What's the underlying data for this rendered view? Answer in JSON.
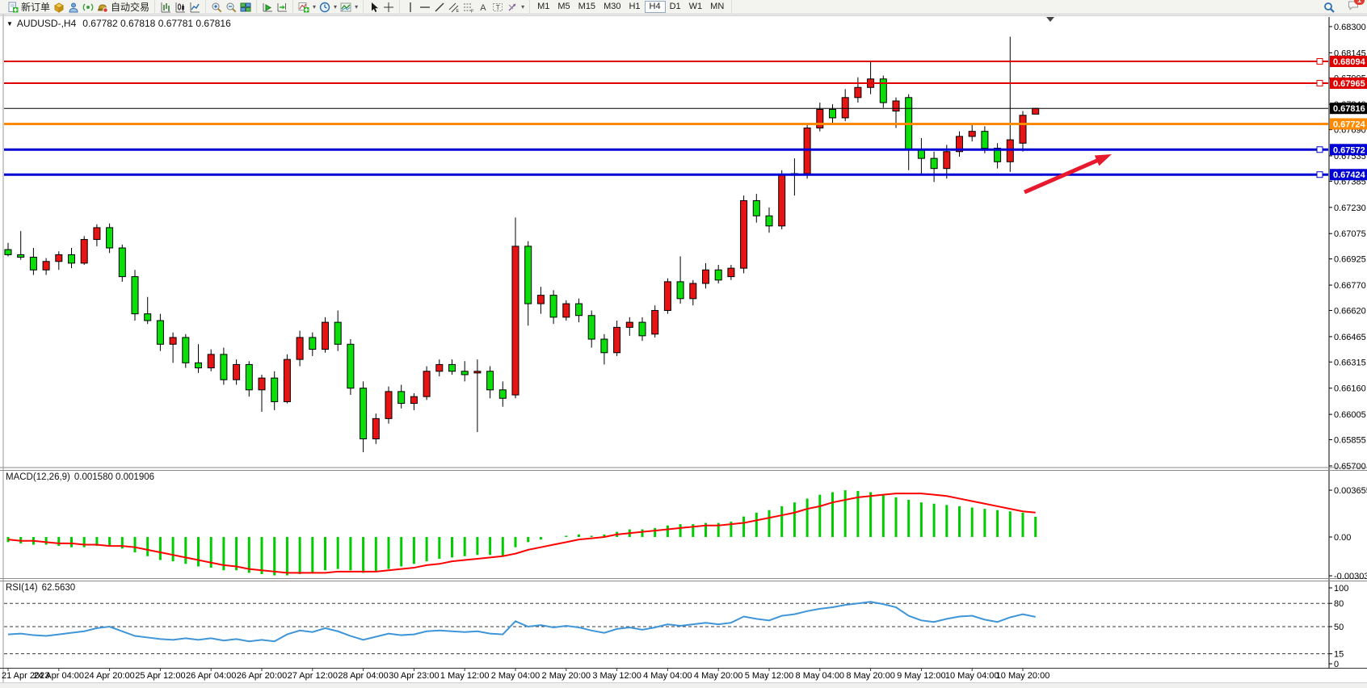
{
  "toolbar": {
    "groups": [
      {
        "items": [
          {
            "icon": "new-order",
            "label": "新订单"
          },
          {
            "icon": "deposit"
          },
          {
            "icon": "community"
          },
          {
            "icon": "signals"
          },
          {
            "icon": "autotrade",
            "label": "自动交易"
          }
        ]
      },
      {
        "items": [
          {
            "icon": "bar-chart"
          },
          {
            "icon": "candle-chart"
          },
          {
            "icon": "line-chart"
          }
        ]
      },
      {
        "items": [
          {
            "icon": "zoom-in"
          },
          {
            "icon": "zoom-out"
          },
          {
            "icon": "tile-windows"
          }
        ]
      },
      {
        "items": [
          {
            "icon": "auto-scroll"
          },
          {
            "icon": "chart-shift"
          }
        ]
      },
      {
        "items": [
          {
            "icon": "indicators",
            "dropdown": true
          },
          {
            "icon": "periods",
            "dropdown": true
          },
          {
            "icon": "templates",
            "dropdown": true
          }
        ]
      },
      {
        "items": [
          {
            "icon": "cursor"
          },
          {
            "icon": "crosshair"
          }
        ]
      },
      {
        "items": [
          {
            "icon": "vline"
          },
          {
            "icon": "hline"
          },
          {
            "icon": "trendline"
          },
          {
            "icon": "channel"
          },
          {
            "icon": "fibonacci"
          },
          {
            "icon": "text"
          },
          {
            "icon": "label"
          },
          {
            "icon": "shapes",
            "dropdown": true
          }
        ]
      }
    ],
    "timeframes": [
      "M1",
      "M5",
      "M15",
      "M30",
      "H1",
      "H4",
      "D1",
      "W1",
      "MN"
    ],
    "active_timeframe": "H4",
    "chat_badge": "1"
  },
  "chart": {
    "symbol_period": "AUDUSD-,H4",
    "ohlc_display": "0.67782 0.67818 0.67781 0.67816"
  },
  "chart_data": {
    "type": "candlestick",
    "symbol": "AUDUSD-",
    "timeframe": "H4",
    "current_bar": {
      "open": 0.67782,
      "high": 0.67818,
      "low": 0.67781,
      "close": 0.67816
    },
    "bull_color": "#E81414",
    "bear_color": "#0ADF0A",
    "y_range": [
      0.65695,
      0.68357
    ],
    "price_axis_ticks": [
      "0.68300",
      "0.68145",
      "0.67995",
      "0.67840",
      "0.67690",
      "0.67535",
      "0.67385",
      "0.67230",
      "0.67075",
      "0.66925",
      "0.66770",
      "0.66620",
      "0.66465",
      "0.66315",
      "0.66160",
      "0.66005",
      "0.65855",
      "0.65700"
    ],
    "x_labels": [
      "21 Apr 2023",
      "24 Apr 04:00",
      "24 Apr 20:00",
      "25 Apr 12:00",
      "26 Apr 04:00",
      "26 Apr 20:00",
      "27 Apr 12:00",
      "28 Apr 04:00",
      "30 Apr 23:00",
      "1 May 12:00",
      "2 May 04:00",
      "2 May 20:00",
      "3 May 12:00",
      "4 May 04:00",
      "4 May 20:00",
      "5 May 12:00",
      "8 May 04:00",
      "8 May 20:00",
      "9 May 12:00",
      "10 May 04:00",
      "10 May 20:00"
    ],
    "x_label_every_n_bars": 4,
    "candles": [
      [
        0.6698,
        0.6702,
        0.6694,
        0.6695
      ],
      [
        0.6695,
        0.6709,
        0.6692,
        0.66935
      ],
      [
        0.66935,
        0.6699,
        0.6683,
        0.6686
      ],
      [
        0.6686,
        0.6693,
        0.6683,
        0.6691
      ],
      [
        0.6691,
        0.6697,
        0.6686,
        0.6695
      ],
      [
        0.6695,
        0.6699,
        0.6687,
        0.669
      ],
      [
        0.669,
        0.6706,
        0.6689,
        0.6704
      ],
      [
        0.6704,
        0.6713,
        0.67,
        0.6711
      ],
      [
        0.6711,
        0.67135,
        0.6696,
        0.6699
      ],
      [
        0.6699,
        0.6701,
        0.6679,
        0.6682
      ],
      [
        0.6682,
        0.6686,
        0.6656,
        0.666
      ],
      [
        0.666,
        0.667,
        0.6654,
        0.6656
      ],
      [
        0.6656,
        0.666,
        0.6638,
        0.6642
      ],
      [
        0.6642,
        0.6649,
        0.6631,
        0.6646
      ],
      [
        0.6646,
        0.6648,
        0.6628,
        0.6631
      ],
      [
        0.6631,
        0.6642,
        0.6625,
        0.6628
      ],
      [
        0.6628,
        0.6639,
        0.6626,
        0.6636
      ],
      [
        0.6636,
        0.664,
        0.6618,
        0.6621
      ],
      [
        0.6621,
        0.6633,
        0.6618,
        0.663
      ],
      [
        0.663,
        0.6632,
        0.6611,
        0.6615
      ],
      [
        0.6615,
        0.6624,
        0.6602,
        0.6622
      ],
      [
        0.6622,
        0.6626,
        0.6603,
        0.6608
      ],
      [
        0.6608,
        0.6636,
        0.6607,
        0.6633
      ],
      [
        0.6633,
        0.665,
        0.6629,
        0.6646
      ],
      [
        0.6646,
        0.6649,
        0.6635,
        0.6639
      ],
      [
        0.6639,
        0.6658,
        0.6637,
        0.6655
      ],
      [
        0.6655,
        0.6662,
        0.6638,
        0.6642
      ],
      [
        0.6642,
        0.6645,
        0.6612,
        0.6616
      ],
      [
        0.6616,
        0.662,
        0.65781,
        0.6586
      ],
      [
        0.6586,
        0.6601,
        0.6583,
        0.6598
      ],
      [
        0.6598,
        0.6617,
        0.6595,
        0.6614
      ],
      [
        0.6614,
        0.6618,
        0.6604,
        0.6607
      ],
      [
        0.6607,
        0.6613,
        0.6603,
        0.6611
      ],
      [
        0.6611,
        0.6629,
        0.6609,
        0.6626
      ],
      [
        0.6626,
        0.6633,
        0.6623,
        0.663
      ],
      [
        0.663,
        0.6633,
        0.6624,
        0.6626
      ],
      [
        0.6626,
        0.6632,
        0.662,
        0.6624
      ],
      [
        0.6625,
        0.6633,
        0.659,
        0.6626
      ],
      [
        0.6626,
        0.6629,
        0.661,
        0.6615
      ],
      [
        0.6615,
        0.662,
        0.6605,
        0.661
      ],
      [
        0.6612,
        0.6717,
        0.661,
        0.67
      ],
      [
        0.67,
        0.6703,
        0.6653,
        0.6666
      ],
      [
        0.6666,
        0.6676,
        0.666,
        0.6671
      ],
      [
        0.6671,
        0.6674,
        0.6654,
        0.6658
      ],
      [
        0.6658,
        0.6668,
        0.6656,
        0.6666
      ],
      [
        0.6666,
        0.6669,
        0.6655,
        0.6659
      ],
      [
        0.6659,
        0.6662,
        0.664,
        0.6645
      ],
      [
        0.6645,
        0.6648,
        0.663,
        0.6637
      ],
      [
        0.6637,
        0.6656,
        0.6635,
        0.6652
      ],
      [
        0.6652,
        0.6658,
        0.6647,
        0.6655
      ],
      [
        0.6655,
        0.6658,
        0.6644,
        0.6647
      ],
      [
        0.6648,
        0.6665,
        0.6646,
        0.6662
      ],
      [
        0.6662,
        0.6681,
        0.666,
        0.6679
      ],
      [
        0.6679,
        0.6694,
        0.6666,
        0.6669
      ],
      [
        0.6669,
        0.668,
        0.6665,
        0.6678
      ],
      [
        0.6678,
        0.669,
        0.6675,
        0.6686
      ],
      [
        0.6686,
        0.6689,
        0.6678,
        0.668
      ],
      [
        0.6682,
        0.6689,
        0.668,
        0.6687
      ],
      [
        0.6687,
        0.673,
        0.6684,
        0.6727
      ],
      [
        0.6727,
        0.6731,
        0.6714,
        0.6718
      ],
      [
        0.6718,
        0.6723,
        0.6708,
        0.6712
      ],
      [
        0.6712,
        0.6745,
        0.671,
        0.6742
      ],
      [
        0.6742,
        0.6752,
        0.673,
        0.6743
      ],
      [
        0.6743,
        0.6773,
        0.674,
        0.677
      ],
      [
        0.677,
        0.6785,
        0.6768,
        0.6781
      ],
      [
        0.6781,
        0.6784,
        0.6772,
        0.6776
      ],
      [
        0.6776,
        0.6793,
        0.6774,
        0.6788
      ],
      [
        0.6788,
        0.68,
        0.6785,
        0.6794
      ],
      [
        0.6794,
        0.68099,
        0.679,
        0.6799
      ],
      [
        0.6799,
        0.6801,
        0.6782,
        0.6785
      ],
      [
        0.678,
        0.6788,
        0.677,
        0.6786
      ],
      [
        0.6788,
        0.679,
        0.6745,
        0.6757
      ],
      [
        0.6757,
        0.6764,
        0.6742,
        0.6752
      ],
      [
        0.6752,
        0.6756,
        0.6738,
        0.6746
      ],
      [
        0.6746,
        0.676,
        0.674,
        0.6756
      ],
      [
        0.6756,
        0.6768,
        0.6753,
        0.6765
      ],
      [
        0.6765,
        0.6772,
        0.6762,
        0.6768
      ],
      [
        0.6768,
        0.6771,
        0.6755,
        0.6758
      ],
      [
        0.6758,
        0.6761,
        0.6746,
        0.675
      ],
      [
        0.675,
        0.6824,
        0.6744,
        0.6763
      ],
      [
        0.6761,
        0.678,
        0.6756,
        0.67775
      ],
      [
        0.67782,
        0.67818,
        0.67781,
        0.67816
      ]
    ],
    "h_lines": [
      {
        "price": 0.68094,
        "label": "0.68094",
        "color": "#DE0000",
        "width": 2,
        "handle": true
      },
      {
        "price": 0.67965,
        "label": "0.67965",
        "color": "#DE0000",
        "width": 2,
        "handle": true
      },
      {
        "price": 0.67816,
        "label": "0.67816",
        "color": "#000000",
        "width": 1,
        "handle": false
      },
      {
        "price": 0.67724,
        "label": "0.67724",
        "color": "#FF8A00",
        "width": 3,
        "handle": false
      },
      {
        "price": 0.67572,
        "label": "0.67572",
        "color": "#0000D4",
        "width": 3,
        "handle": true
      },
      {
        "price": 0.67424,
        "label": "0.67424",
        "color": "#0000D4",
        "width": 3,
        "handle": true
      }
    ],
    "arrow": {
      "from": [
        1268,
        238
      ],
      "to": [
        1376,
        191
      ],
      "color": "#E8192C"
    },
    "indicators": [
      {
        "name": "MACD",
        "label": "MACD(12,26,9)",
        "values_label": "0.001580 0.001906",
        "axis_ticks": [
          "0.003655",
          "0.00",
          "-0.00303"
        ],
        "histogram_color": "#00CC00",
        "signal_color": "#FF0000",
        "histogram": [
          -0.0004,
          -0.0005,
          -0.0006,
          -0.0006,
          -0.0007,
          -0.0008,
          -0.0008,
          -0.0007,
          -0.0007,
          -0.0009,
          -0.0012,
          -0.0015,
          -0.0018,
          -0.0019,
          -0.0021,
          -0.0023,
          -0.0024,
          -0.0026,
          -0.0026,
          -0.0028,
          -0.0029,
          -0.003,
          -0.003,
          -0.0029,
          -0.0028,
          -0.0026,
          -0.0025,
          -0.0026,
          -0.0028,
          -0.0027,
          -0.0025,
          -0.0023,
          -0.0021,
          -0.0019,
          -0.0017,
          -0.0016,
          -0.0015,
          -0.0014,
          -0.0014,
          -0.0015,
          -0.0008,
          -0.0004,
          -0.0002,
          0.0,
          0.0001,
          0.0002,
          0.0001,
          0.0002,
          0.0004,
          0.0006,
          0.0006,
          0.0007,
          0.0009,
          0.001,
          0.001,
          0.0011,
          0.0011,
          0.0012,
          0.0016,
          0.0019,
          0.0021,
          0.0024,
          0.0027,
          0.003,
          0.0033,
          0.0035,
          0.00365,
          0.0036,
          0.0035,
          0.0033,
          0.0031,
          0.0029,
          0.0027,
          0.0026,
          0.0025,
          0.0024,
          0.0023,
          0.0022,
          0.0021,
          0.002,
          0.0019,
          0.00158
        ],
        "signal": [
          -0.0002,
          -0.0003,
          -0.0003,
          -0.0004,
          -0.0005,
          -0.0005,
          -0.0006,
          -0.0006,
          -0.0007,
          -0.0007,
          -0.0008,
          -0.001,
          -0.0012,
          -0.0014,
          -0.0016,
          -0.0018,
          -0.002,
          -0.0022,
          -0.0023,
          -0.0025,
          -0.0026,
          -0.0027,
          -0.0028,
          -0.0028,
          -0.0028,
          -0.0028,
          -0.0027,
          -0.0027,
          -0.0027,
          -0.0027,
          -0.0026,
          -0.0025,
          -0.0024,
          -0.0022,
          -0.0021,
          -0.0019,
          -0.0018,
          -0.0017,
          -0.0016,
          -0.0015,
          -0.0013,
          -0.001,
          -0.0008,
          -0.0006,
          -0.0004,
          -0.0002,
          -0.0001,
          0.0,
          0.0002,
          0.0003,
          0.0004,
          0.0005,
          0.0006,
          0.0007,
          0.0008,
          0.0009,
          0.0009,
          0.001,
          0.0011,
          0.0013,
          0.0015,
          0.0017,
          0.0019,
          0.0022,
          0.0024,
          0.0027,
          0.0029,
          0.0031,
          0.0032,
          0.0033,
          0.0034,
          0.0034,
          0.0034,
          0.0033,
          0.0032,
          0.003,
          0.0028,
          0.0026,
          0.0024,
          0.0022,
          0.002,
          0.00191
        ]
      },
      {
        "name": "RSI",
        "label": "RSI(14)",
        "values_label": "62.5630",
        "axis_ticks": [
          "100",
          "80",
          "50",
          "15",
          "0"
        ],
        "levels": [
          80,
          50,
          15
        ],
        "line_color": "#3E95D8",
        "values": [
          40,
          41,
          39,
          38,
          40,
          42,
          44,
          48,
          50,
          44,
          38,
          36,
          34,
          33,
          35,
          33,
          35,
          32,
          34,
          31,
          33,
          31,
          40,
          45,
          43,
          48,
          44,
          38,
          33,
          37,
          41,
          39,
          40,
          44,
          45,
          44,
          43,
          44,
          41,
          40,
          57,
          50,
          52,
          49,
          51,
          49,
          45,
          42,
          47,
          49,
          46,
          49,
          53,
          51,
          53,
          55,
          53,
          55,
          63,
          60,
          58,
          64,
          66,
          70,
          73,
          75,
          78,
          80,
          82,
          79,
          75,
          64,
          58,
          56,
          60,
          63,
          64,
          59,
          56,
          62,
          66,
          62.6
        ]
      }
    ]
  }
}
